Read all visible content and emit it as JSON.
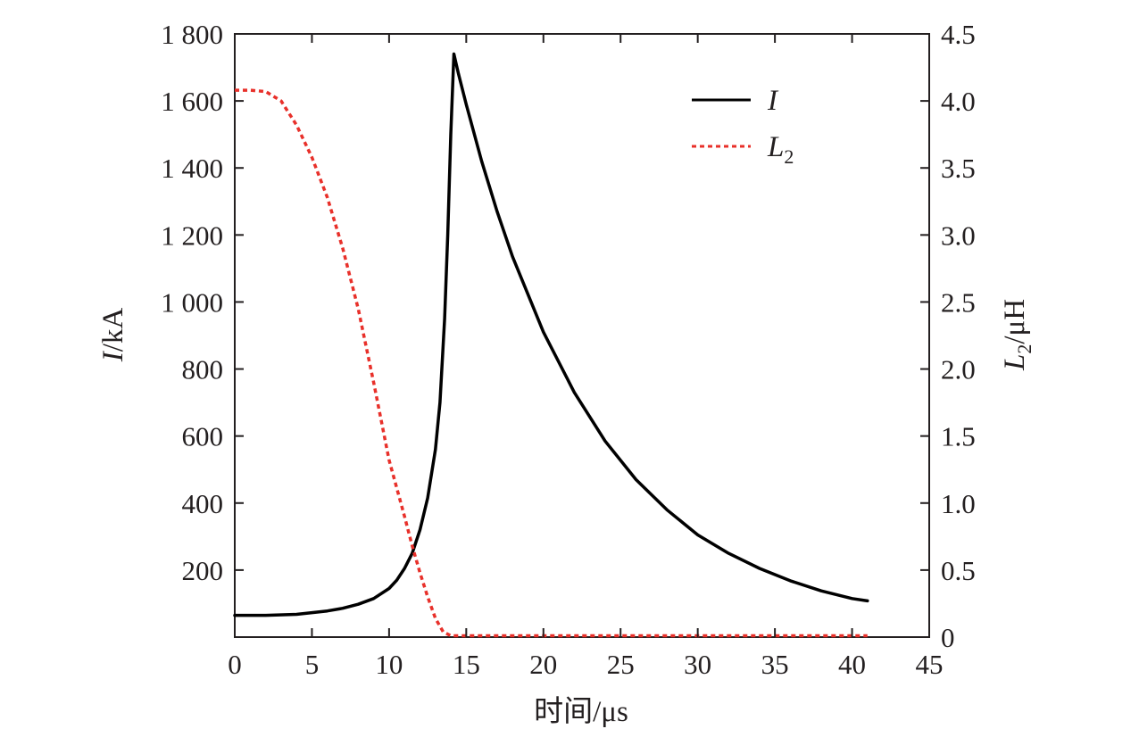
{
  "chart_data": {
    "type": "line",
    "xlabel": "时间/μs",
    "ylabel_left": {
      "main": "I",
      "unit": "/kA"
    },
    "ylabel_right": {
      "main": "L",
      "sub": "2",
      "unit": "/μH"
    },
    "xlim": [
      0,
      45
    ],
    "ylim_left": [
      0,
      1800
    ],
    "ylim_right": [
      0,
      4.5
    ],
    "xticks": [
      0,
      5,
      10,
      15,
      20,
      25,
      30,
      35,
      40,
      45
    ],
    "xtick_labels": [
      "0",
      "5",
      "10",
      "15",
      "20",
      "25",
      "30",
      "35",
      "40",
      "45"
    ],
    "yticks_left": [
      200,
      400,
      600,
      800,
      1000,
      1200,
      1400,
      1600,
      1800
    ],
    "ytick_labels_left": [
      "200",
      "400",
      "600",
      "800",
      "1 000",
      "1 200",
      "1 400",
      "1 600",
      "1 800"
    ],
    "yticks_right": [
      0,
      0.5,
      1.0,
      1.5,
      2.0,
      2.5,
      3.0,
      3.5,
      4.0,
      4.5
    ],
    "ytick_labels_right": [
      "0",
      "0.5",
      "1.0",
      "1.5",
      "2.0",
      "2.5",
      "3.0",
      "3.5",
      "4.0",
      "4.5"
    ],
    "legend_position": "top-right",
    "grid": false,
    "series": [
      {
        "name": "I",
        "axis": "left",
        "color": "#000000",
        "style": "solid",
        "x": [
          0,
          2,
          4,
          6,
          7,
          8,
          9,
          10,
          10.5,
          11,
          11.5,
          12,
          12.5,
          13,
          13.3,
          13.6,
          13.8,
          14.0,
          14.2,
          14.5,
          15,
          16,
          17,
          18,
          20,
          22,
          24,
          26,
          28,
          30,
          32,
          34,
          36,
          38,
          40,
          41
        ],
        "y": [
          65,
          65,
          68,
          78,
          86,
          98,
          115,
          145,
          170,
          205,
          250,
          320,
          415,
          560,
          700,
          950,
          1200,
          1500,
          1740,
          1680,
          1590,
          1420,
          1270,
          1135,
          910,
          730,
          585,
          470,
          380,
          305,
          250,
          205,
          168,
          138,
          115,
          108
        ]
      },
      {
        "name": "L2",
        "axis": "right",
        "color": "#e8302a",
        "style": "dashed",
        "x": [
          0,
          1,
          2,
          3,
          4,
          5,
          6,
          7,
          8,
          9,
          10,
          11,
          11.5,
          12,
          12.5,
          13,
          13.5,
          14,
          14.5,
          15,
          20,
          25,
          30,
          35,
          41
        ],
        "y": [
          4.08,
          4.08,
          4.07,
          4.0,
          3.82,
          3.58,
          3.28,
          2.9,
          2.45,
          1.9,
          1.32,
          0.9,
          0.68,
          0.48,
          0.3,
          0.14,
          0.04,
          0.01,
          0.01,
          0.01,
          0.01,
          0.01,
          0.01,
          0.01,
          0.01
        ]
      }
    ]
  }
}
